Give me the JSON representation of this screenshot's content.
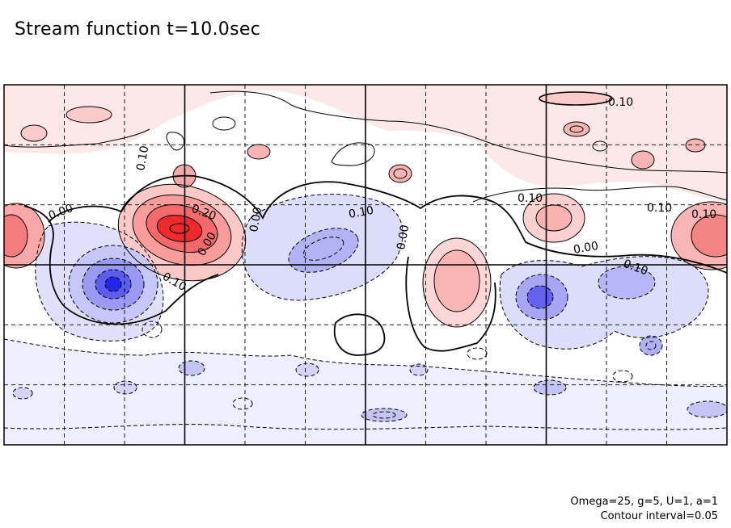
{
  "header": {
    "title": "Stream function t=10.0sec"
  },
  "footer": {
    "params": "Omega=25, g=5, U=1, a=1",
    "interval": "Contour interval=0.05"
  },
  "chart_data": {
    "type": "heatmap",
    "title": "Stream function t=10.0sec",
    "xlabel": "",
    "ylabel": "",
    "contour_interval": 0.05,
    "grid": "dashed",
    "color_positive": "#ff0000",
    "color_negative": "#0000ff",
    "contour_labels": [
      "0.10",
      "0.10",
      "0.20",
      "0.00",
      "0.00",
      "0.10",
      "0.00",
      "0.10",
      "0.10",
      "0.00",
      "0.10",
      "0.00",
      "0.10",
      "0.10"
    ],
    "features": [
      {
        "sign": "positive",
        "peak": 0.3
      },
      {
        "sign": "negative",
        "peak": -0.25
      },
      {
        "sign": "positive",
        "peak": 0.15
      },
      {
        "sign": "negative",
        "peak": -0.15
      }
    ]
  }
}
